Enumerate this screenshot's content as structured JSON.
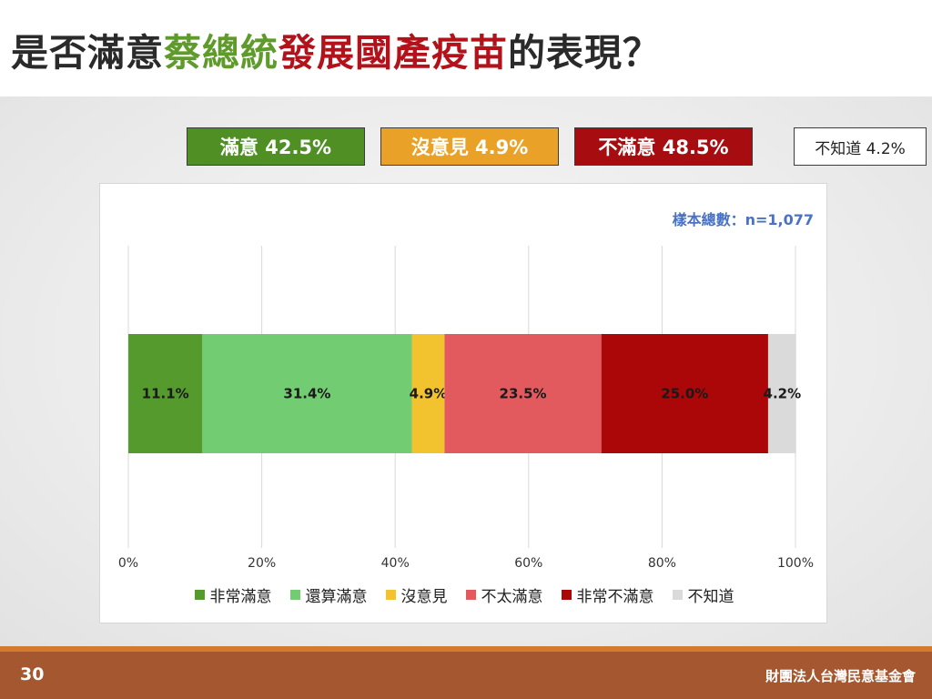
{
  "title": {
    "part1": "是否滿意",
    "part2": "蔡總統",
    "part3": "發展國產疫苗",
    "part4": "的表現？"
  },
  "summary": [
    {
      "label": "滿意 42.5%",
      "color": "#4f8f24"
    },
    {
      "label": "沒意見 4.9%",
      "color": "#e9a227"
    },
    {
      "label": "不滿意 48.5%",
      "color": "#a70d10"
    },
    {
      "label": "不知道 4.2%",
      "color": "#ffffff"
    }
  ],
  "sample_label": "樣本總數：n=1,077",
  "chart_data": {
    "type": "bar",
    "orientation": "horizontal-stacked",
    "xlim": [
      0,
      100
    ],
    "x_ticks": [
      "0%",
      "20%",
      "40%",
      "60%",
      "80%",
      "100%"
    ],
    "grid": true,
    "legend_position": "bottom",
    "series": [
      {
        "name": "非常滿意",
        "value": 11.1,
        "label": "11.1%",
        "color": "#559a2c"
      },
      {
        "name": "還算滿意",
        "value": 31.4,
        "label": "31.4%",
        "color": "#72cc72"
      },
      {
        "name": "沒意見",
        "value": 4.9,
        "label": "4.9%",
        "color": "#f2c32e"
      },
      {
        "name": "不太滿意",
        "value": 23.5,
        "label": "23.5%",
        "color": "#e25a5e"
      },
      {
        "name": "非常不滿意",
        "value": 25.0,
        "label": "25.0%",
        "color": "#ab0608"
      },
      {
        "name": "不知道",
        "value": 4.2,
        "label": "4.2%",
        "color": "#dadada"
      }
    ]
  },
  "footer": {
    "page": "30",
    "org": "財團法人台灣民意基金會"
  }
}
